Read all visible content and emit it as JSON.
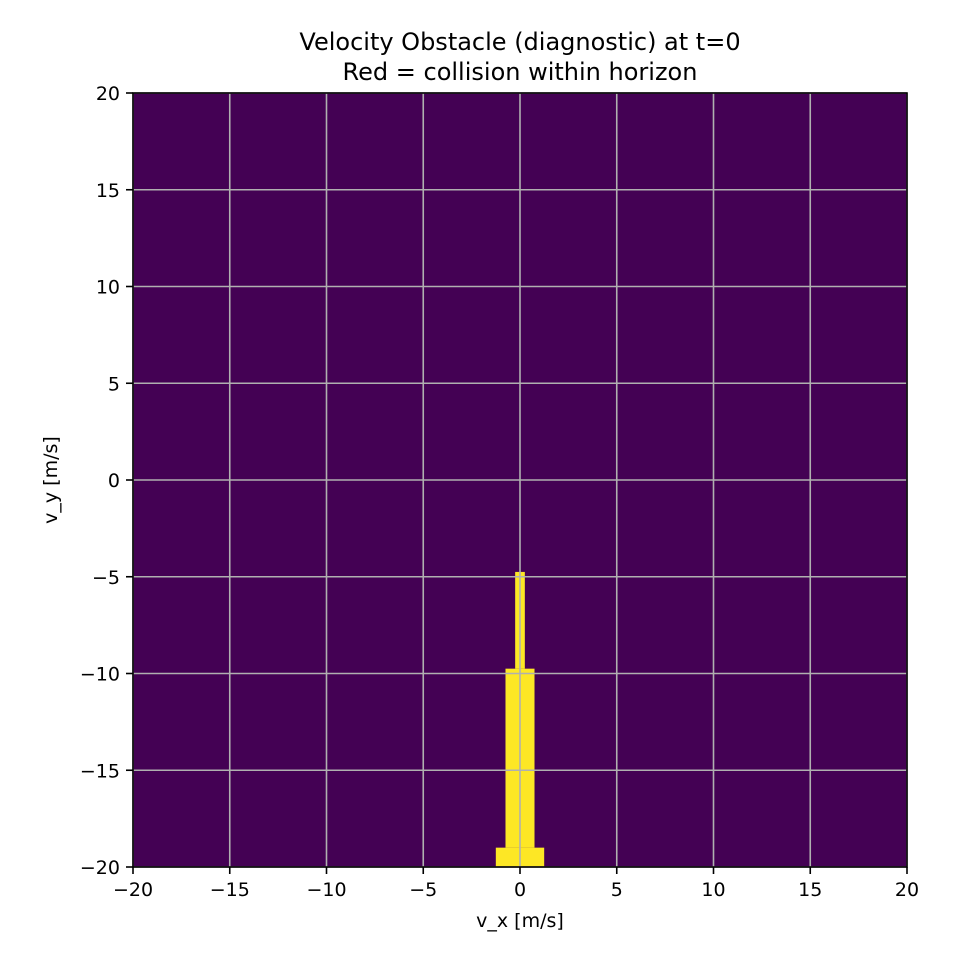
{
  "chart_data": {
    "type": "heatmap",
    "title_lines": [
      "Velocity Obstacle (diagnostic) at t=0",
      "Red = collision within horizon"
    ],
    "xlabel": "v_x [m/s]",
    "ylabel": "v_y [m/s]",
    "xlim": [
      -20,
      20
    ],
    "ylim": [
      -20,
      20
    ],
    "xticks": [
      -20,
      -15,
      -10,
      -5,
      0,
      5,
      10,
      15,
      20
    ],
    "yticks": [
      -20,
      -15,
      -10,
      -5,
      0,
      5,
      10,
      15,
      20
    ],
    "xtick_labels": [
      "−20",
      "−15",
      "−10",
      "−5",
      "0",
      "5",
      "10",
      "15",
      "20"
    ],
    "ytick_labels": [
      "−20",
      "−15",
      "−10",
      "−5",
      "0",
      "5",
      "10",
      "15",
      "20"
    ],
    "grid": true,
    "background_color": "#440154",
    "collision_color": "#fde725",
    "grid_color": "#b0b0b0",
    "collision_regions": [
      {
        "x0": -1.25,
        "x1": 1.25,
        "y0": -20,
        "y1": -19.0
      },
      {
        "x0": -0.75,
        "x1": 0.75,
        "y0": -19.0,
        "y1": -9.75
      },
      {
        "x0": -0.25,
        "x1": 0.25,
        "y0": -9.75,
        "y1": -4.75
      }
    ]
  }
}
